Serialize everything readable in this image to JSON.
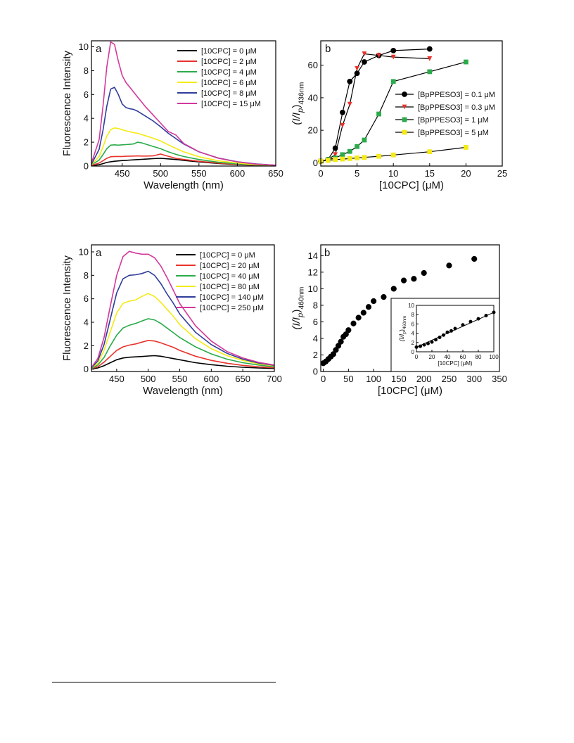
{
  "charts": [
    {
      "id": "top_a",
      "chart_data": {
        "type": "line",
        "panel_label": "a",
        "xlabel": "Wavelength (nm)",
        "ylabel": "Fluorescence Intensity",
        "xlim": [
          410,
          650
        ],
        "ylim": [
          0,
          10.5
        ],
        "xticks": [
          450,
          500,
          550,
          600,
          650
        ],
        "yticks": [
          0,
          2,
          4,
          6,
          8,
          10
        ],
        "legend_position": "top-right",
        "x": [
          410,
          420,
          425,
          430,
          435,
          440,
          445,
          450,
          455,
          460,
          465,
          470,
          475,
          480,
          490,
          500,
          510,
          520,
          530,
          550,
          575,
          600,
          625,
          650
        ],
        "series": [
          {
            "name": "[10CPC] = 0 μM",
            "color": "#000000",
            "values": [
              0.02,
              0.12,
              0.2,
              0.3,
              0.36,
              0.4,
              0.43,
              0.46,
              0.48,
              0.5,
              0.52,
              0.54,
              0.56,
              0.58,
              0.62,
              0.65,
              0.6,
              0.55,
              0.48,
              0.35,
              0.22,
              0.12,
              0.06,
              0.03
            ]
          },
          {
            "name": "[10CPC] = 2 μM",
            "color": "#e8332c",
            "values": [
              0.05,
              0.25,
              0.45,
              0.65,
              0.78,
              0.8,
              0.8,
              0.8,
              0.82,
              0.83,
              0.84,
              0.85,
              0.84,
              0.84,
              0.85,
              1.0,
              0.82,
              0.65,
              0.55,
              0.4,
              0.25,
              0.14,
              0.07,
              0.03
            ]
          },
          {
            "name": "[10CPC] = 4 μM",
            "color": "#2aab4a",
            "values": [
              0.1,
              0.5,
              0.95,
              1.45,
              1.75,
              1.78,
              1.75,
              1.78,
              1.8,
              1.82,
              1.85,
              2.0,
              1.95,
              1.85,
              1.65,
              1.45,
              1.2,
              0.98,
              0.8,
              0.55,
              0.32,
              0.18,
              0.09,
              0.04
            ]
          },
          {
            "name": "[10CPC] = 6 μM",
            "color": "#f5ea14",
            "values": [
              0.12,
              0.8,
              1.6,
              2.5,
              3.05,
              3.2,
              3.15,
              3.05,
              2.95,
              2.88,
              2.8,
              2.75,
              2.65,
              2.55,
              2.35,
              2.1,
              1.78,
              1.48,
              1.2,
              0.78,
              0.45,
              0.25,
              0.12,
              0.05
            ]
          },
          {
            "name": "[10CPC] = 8 μM",
            "color": "#2f3d9b",
            "values": [
              0.15,
              1.4,
              3.0,
              5.0,
              6.45,
              6.6,
              6.0,
              5.2,
              4.9,
              4.8,
              4.75,
              4.6,
              4.4,
              4.2,
              3.8,
              3.3,
              2.75,
              2.3,
              1.85,
              1.2,
              0.68,
              0.36,
              0.17,
              0.07
            ]
          },
          {
            "name": "[10CPC] = 15 μM",
            "color": "#d2399c",
            "values": [
              0.25,
              2.2,
              5.0,
              8.3,
              10.4,
              10.2,
              8.8,
              7.6,
              7.0,
              6.6,
              6.2,
              5.8,
              5.4,
              5.0,
              4.3,
              3.6,
              2.9,
              2.6,
              1.9,
              1.2,
              0.66,
              0.35,
              0.16,
              0.07
            ]
          }
        ]
      }
    },
    {
      "id": "top_b",
      "chart_data": {
        "type": "line",
        "panel_label": "b",
        "xlabel": "[10CPC] (μM)",
        "ylabel_main": "(I/I",
        "ylabel_sub": "p",
        "ylabel_end": ")",
        "ylabel_subscript": "436nm",
        "xlim": [
          0,
          25
        ],
        "ylim": [
          -2,
          75
        ],
        "xticks": [
          0,
          5,
          10,
          15,
          20,
          25
        ],
        "yticks": [
          0,
          20,
          40,
          60
        ],
        "legend_position": "right",
        "series": [
          {
            "name": "[BpPPESO3] = 0.1 μM",
            "color": "#000000",
            "marker": "circle",
            "x": [
              0,
              1,
              2,
              3,
              4,
              5,
              6,
              8,
              10,
              15
            ],
            "y": [
              1,
              2,
              9,
              31,
              50,
              55,
              62,
              66,
              69,
              70
            ]
          },
          {
            "name": "[BpPPESO3] = 0.3 μM",
            "color": "#e8332c",
            "marker": "triangle-down",
            "x": [
              0,
              1,
              2,
              3,
              4,
              5,
              6,
              8,
              10,
              15
            ],
            "y": [
              1,
              2,
              5,
              23,
              36,
              58,
              67,
              66,
              65,
              64
            ]
          },
          {
            "name": "[BpPPESO3] = 1 μM",
            "color": "#2aab4a",
            "marker": "square",
            "x": [
              0,
              1,
              2,
              3,
              4,
              5,
              6,
              8,
              10,
              15,
              20
            ],
            "y": [
              1,
              2,
              3,
              5,
              7,
              10,
              14,
              30,
              50,
              56,
              62
            ]
          },
          {
            "name": "[BpPPESO3] = 5 μM",
            "color": "#f5ea14",
            "marker": "square",
            "x": [
              0,
              1,
              2,
              3,
              4,
              5,
              6,
              8,
              10,
              15,
              20
            ],
            "y": [
              1,
              1.5,
              2,
              2.3,
              2.6,
              3,
              3.3,
              4,
              4.8,
              6.8,
              9.5
            ]
          }
        ]
      }
    },
    {
      "id": "bottom_a",
      "chart_data": {
        "type": "line",
        "panel_label": "a",
        "xlabel": "Wavelength (nm)",
        "ylabel": "Fluorescence Intensity",
        "xlim": [
          410,
          700
        ],
        "ylim": [
          -0.2,
          10.6
        ],
        "xticks": [
          450,
          500,
          550,
          600,
          650,
          700
        ],
        "yticks": [
          0,
          2,
          4,
          6,
          8,
          10
        ],
        "legend_position": "top-right",
        "x": [
          410,
          420,
          430,
          440,
          450,
          460,
          470,
          480,
          490,
          500,
          510,
          520,
          530,
          540,
          550,
          575,
          600,
          625,
          650,
          675,
          700
        ],
        "series": [
          {
            "name": "[10CPC] = 0 μM",
            "color": "#000000",
            "values": [
              0.02,
              0.1,
              0.3,
              0.55,
              0.8,
              0.95,
              1.02,
              1.05,
              1.08,
              1.12,
              1.15,
              1.1,
              1.0,
              0.9,
              0.8,
              0.55,
              0.38,
              0.25,
              0.16,
              0.1,
              0.06
            ]
          },
          {
            "name": "[10CPC] = 20 μM",
            "color": "#e8332c",
            "values": [
              0.05,
              0.2,
              0.6,
              1.1,
              1.6,
              1.9,
              2.05,
              2.15,
              2.3,
              2.45,
              2.4,
              2.25,
              2.05,
              1.85,
              1.6,
              1.1,
              0.75,
              0.5,
              0.32,
              0.2,
              0.12
            ]
          },
          {
            "name": "[10CPC] = 40 μM",
            "color": "#2aab4a",
            "values": [
              0.05,
              0.35,
              1.0,
              2.0,
              2.9,
              3.5,
              3.75,
              3.9,
              4.1,
              4.3,
              4.2,
              3.9,
              3.5,
              3.1,
              2.7,
              1.9,
              1.3,
              0.85,
              0.55,
              0.35,
              0.2
            ]
          },
          {
            "name": "[10CPC] = 80 μM",
            "color": "#f5ea14",
            "values": [
              0.1,
              0.5,
              1.6,
              3.2,
              4.8,
              5.6,
              5.8,
              5.9,
              6.2,
              6.45,
              6.2,
              5.7,
              5.1,
              4.5,
              3.8,
              2.6,
              1.75,
              1.15,
              0.75,
              0.45,
              0.28
            ]
          },
          {
            "name": "[10CPC] = 140 μM",
            "color": "#2f3d9b",
            "values": [
              0.1,
              0.7,
              2.1,
              4.3,
              6.5,
              7.7,
              8.0,
              8.05,
              8.15,
              8.35,
              8.0,
              7.3,
              6.4,
              5.6,
              4.7,
              3.15,
              2.1,
              1.35,
              0.85,
              0.52,
              0.32
            ]
          },
          {
            "name": "[10CPC] = 250 μM",
            "color": "#d2399c",
            "values": [
              0.15,
              0.9,
              2.7,
              5.4,
              8.0,
              9.6,
              10.05,
              9.9,
              9.8,
              9.8,
              9.5,
              8.8,
              7.8,
              6.7,
              5.6,
              3.7,
              2.4,
              1.5,
              0.95,
              0.58,
              0.35
            ]
          }
        ]
      }
    },
    {
      "id": "bottom_b",
      "chart_data": {
        "type": "scatter",
        "panel_label": "b",
        "xlabel": "[10CPC] (μM)",
        "ylabel_main": "(I/I",
        "ylabel_sub": "p",
        "ylabel_end": ")",
        "ylabel_subscript": "460nm",
        "xlim": [
          -5,
          350
        ],
        "ylim": [
          0,
          15.3
        ],
        "xticks": [
          0,
          50,
          100,
          150,
          200,
          250,
          300,
          350
        ],
        "yticks": [
          0,
          2,
          4,
          6,
          8,
          10,
          12,
          14
        ],
        "series": [
          {
            "name": "",
            "color": "#000000",
            "marker": "circle",
            "x": [
              0,
              5,
              10,
              15,
              20,
              25,
              30,
              35,
              40,
              45,
              50,
              60,
              70,
              80,
              90,
              100,
              120,
              140,
              160,
              180,
              200,
              250,
              300
            ],
            "y": [
              1.0,
              1.2,
              1.5,
              1.8,
              2.1,
              2.6,
              3.1,
              3.6,
              4.2,
              4.5,
              5.0,
              5.8,
              6.5,
              7.1,
              7.8,
              8.5,
              9.0,
              10.0,
              11.0,
              11.2,
              11.9,
              12.8,
              13.6
            ]
          }
        ],
        "inset": {
          "xlabel": "[10CPC] (μM)",
          "ylabel_main": "(I/I",
          "ylabel_sub": "p",
          "ylabel_end": ")",
          "ylabel_subscript": "460nm",
          "xlim": [
            0,
            100
          ],
          "ylim": [
            0,
            10
          ],
          "xticks": [
            0,
            20,
            40,
            60,
            80,
            100
          ],
          "yticks": [
            0,
            2,
            4,
            6,
            8,
            10
          ],
          "x": [
            0,
            5,
            10,
            15,
            20,
            25,
            30,
            35,
            40,
            45,
            50,
            60,
            70,
            80,
            90,
            100
          ],
          "y": [
            1.0,
            1.2,
            1.5,
            1.8,
            2.1,
            2.6,
            3.1,
            3.6,
            4.2,
            4.5,
            5.0,
            5.8,
            6.5,
            7.1,
            7.8,
            8.5
          ],
          "fit": {
            "x": [
              0,
              100
            ],
            "y": [
              1.0,
              8.5
            ]
          }
        }
      }
    }
  ]
}
